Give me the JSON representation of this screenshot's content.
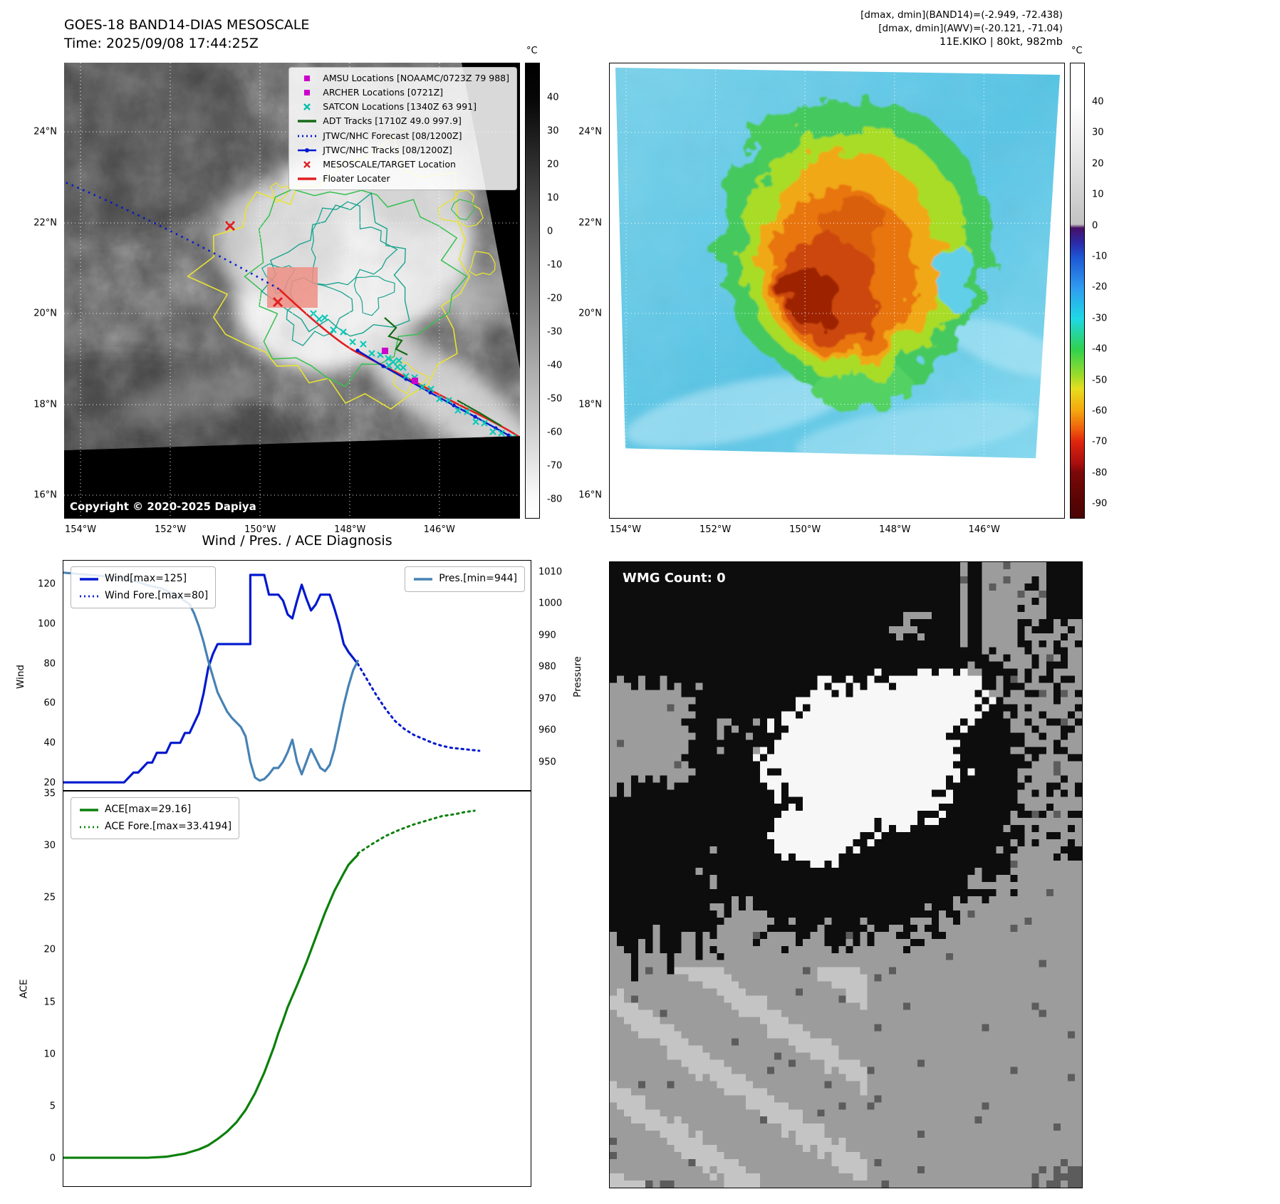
{
  "panel_tl": {
    "title": "GOES-18 BAND14-DIAS MESOSCALE",
    "subtitle": "Time: 2025/09/08 17:44:25Z",
    "copyright": "Copyright © 2020-2025 Dapiya",
    "legend": [
      {
        "label": "AMSU Locations [NOAAMC/0723Z 79 988]",
        "marker": "square",
        "color": "#cc00cc"
      },
      {
        "label": "ARCHER Locations [0721Z]",
        "marker": "square",
        "color": "#cc00cc"
      },
      {
        "label": "SATCON Locations [1340Z 63 991]",
        "marker": "x",
        "color": "#00bfad"
      },
      {
        "label": "ADT Tracks [1710Z 49.0 997.9]",
        "marker": "line",
        "color": "#166b16"
      },
      {
        "label": "JTWC/NHC Forecast [08/1200Z]",
        "marker": "dotted",
        "color": "#0018cf"
      },
      {
        "label": "JTWC/NHC Tracks [08/1200Z]",
        "marker": "line-dot",
        "color": "#0018cf"
      },
      {
        "label": "MESOSCALE/TARGET Location",
        "marker": "x",
        "color": "#e02020"
      },
      {
        "label": "Floater Locater",
        "marker": "line",
        "color": "#e02020"
      }
    ],
    "xticks": [
      "154°W",
      "152°W",
      "150°W",
      "148°W",
      "146°W"
    ],
    "yticks": [
      "24°N",
      "22°N",
      "20°N",
      "18°N",
      "16°N"
    ],
    "colorbar": {
      "unit": "°C",
      "ticks": [
        "40",
        "30",
        "20",
        "10",
        "0",
        "-10",
        "-20",
        "-30",
        "-40",
        "-50",
        "-60",
        "-70",
        "-80"
      ]
    }
  },
  "panel_tr": {
    "header_lines": [
      "[dmax, dmin](BAND14)=(-2.949, -72.438)",
      "[dmax, dmin](AWV)=(-20.121, -71.04)",
      "11E.KIKO | 80kt, 982mb"
    ],
    "xticks": [
      "154°W",
      "152°W",
      "150°W",
      "148°W",
      "146°W"
    ],
    "yticks": [
      "24°N",
      "22°N",
      "20°N",
      "18°N",
      "16°N"
    ],
    "colorbar": {
      "unit": "°C",
      "ticks": [
        "40",
        "30",
        "20",
        "10",
        "0",
        "-10",
        "-20",
        "-30",
        "-40",
        "-50",
        "-60",
        "-70",
        "-80",
        "-90"
      ]
    }
  },
  "panel_br": {
    "label": "WMG Count: 0"
  },
  "chart_data": [
    {
      "type": "line",
      "title": "Wind / Pres. / ACE Diagnosis",
      "x_range": [
        0,
        100
      ],
      "x_unit": "time index (no tick labels shown)",
      "grid": false,
      "axes": {
        "left": {
          "label": "Wind",
          "ticks": [
            120,
            100,
            80,
            60,
            40,
            20
          ],
          "lim": [
            16.1,
            132.2
          ]
        },
        "right": {
          "label": "Pressure",
          "ticks": [
            1010,
            1000,
            990,
            980,
            970,
            960,
            950
          ],
          "lim": [
            941,
            1013.8
          ]
        }
      },
      "series": [
        {
          "name": "Wind[max=125]",
          "axis": "left",
          "style": "solid",
          "color": "#0018cf",
          "x": [
            0,
            13,
            15,
            16,
            18,
            19,
            20,
            22,
            23,
            25,
            26,
            27,
            28,
            29,
            30,
            31,
            32,
            33,
            36,
            39,
            40,
            40,
            43,
            44,
            46,
            47,
            48,
            49,
            50,
            51,
            52,
            53,
            54,
            55,
            57,
            58,
            59,
            60,
            61,
            62,
            63
          ],
          "y": [
            20,
            20,
            25,
            25,
            30,
            30,
            35,
            35,
            40,
            40,
            45,
            45,
            50,
            55,
            65,
            78,
            85,
            90,
            90,
            90,
            90,
            125,
            125,
            115,
            115,
            112,
            105,
            103,
            112,
            120,
            113,
            107,
            110,
            115,
            115,
            108,
            100,
            90,
            86,
            83,
            80
          ]
        },
        {
          "name": "Wind Fore.[max=80]",
          "axis": "left",
          "style": "dotted",
          "color": "#0018cf",
          "x": [
            63,
            65,
            67,
            69,
            71,
            73,
            75,
            77,
            79,
            81,
            83,
            85,
            87,
            89
          ],
          "y": [
            80,
            72,
            64,
            57,
            51,
            47,
            44,
            42,
            40,
            38.5,
            37.5,
            37,
            36.5,
            36
          ]
        },
        {
          "name": "Pres.[min=944]",
          "axis": "right",
          "style": "solid",
          "color": "#4682b4",
          "x": [
            0,
            8,
            14,
            18,
            21,
            24,
            26,
            27,
            28,
            29,
            30,
            31,
            32,
            33,
            34,
            35,
            36,
            38,
            39,
            40,
            41,
            42,
            43,
            44,
            45,
            46,
            47,
            48,
            49,
            50,
            51,
            52,
            53,
            54,
            55,
            56,
            57,
            58,
            59,
            60,
            61,
            62,
            63
          ],
          "y": [
            1010,
            1009,
            1008,
            1006,
            1005,
            1003,
            1001,
            1000,
            997,
            993,
            988,
            982,
            977,
            972,
            969,
            966,
            964,
            961,
            958,
            950,
            945,
            944,
            944.5,
            946,
            948,
            948,
            950,
            953,
            957,
            950,
            946,
            950,
            954,
            951,
            948,
            947,
            949,
            954,
            961,
            968,
            974,
            979,
            982
          ]
        }
      ]
    },
    {
      "type": "line",
      "title": "",
      "x_range": [
        0,
        100
      ],
      "grid": false,
      "axes": {
        "left": {
          "label": "ACE",
          "ticks": [
            35,
            30,
            25,
            20,
            15,
            10,
            5,
            0
          ],
          "lim": [
            -2.74,
            35.27
          ]
        }
      },
      "series": [
        {
          "name": "ACE[max=29.16]",
          "axis": "left",
          "style": "solid",
          "color": "#0b800b",
          "x": [
            0,
            18,
            22,
            26,
            29,
            31,
            33,
            35,
            37,
            39,
            41,
            43,
            45,
            46,
            47,
            48,
            50,
            52,
            54,
            56,
            58,
            60,
            61,
            62,
            63
          ],
          "y": [
            0,
            0,
            0.1,
            0.4,
            0.8,
            1.2,
            1.8,
            2.5,
            3.4,
            4.6,
            6.2,
            8.2,
            10.6,
            12,
            13.2,
            14.5,
            16.6,
            18.8,
            21.2,
            23.6,
            25.7,
            27.4,
            28.2,
            28.7,
            29.16
          ]
        },
        {
          "name": "ACE Fore.[max=33.4194]",
          "axis": "left",
          "style": "dotted",
          "color": "#0b800b",
          "x": [
            63,
            66,
            69,
            72,
            75,
            78,
            81,
            84,
            86,
            88
          ],
          "y": [
            29.3,
            30.2,
            31,
            31.6,
            32.1,
            32.5,
            32.9,
            33.1,
            33.3,
            33.42
          ]
        }
      ]
    }
  ]
}
